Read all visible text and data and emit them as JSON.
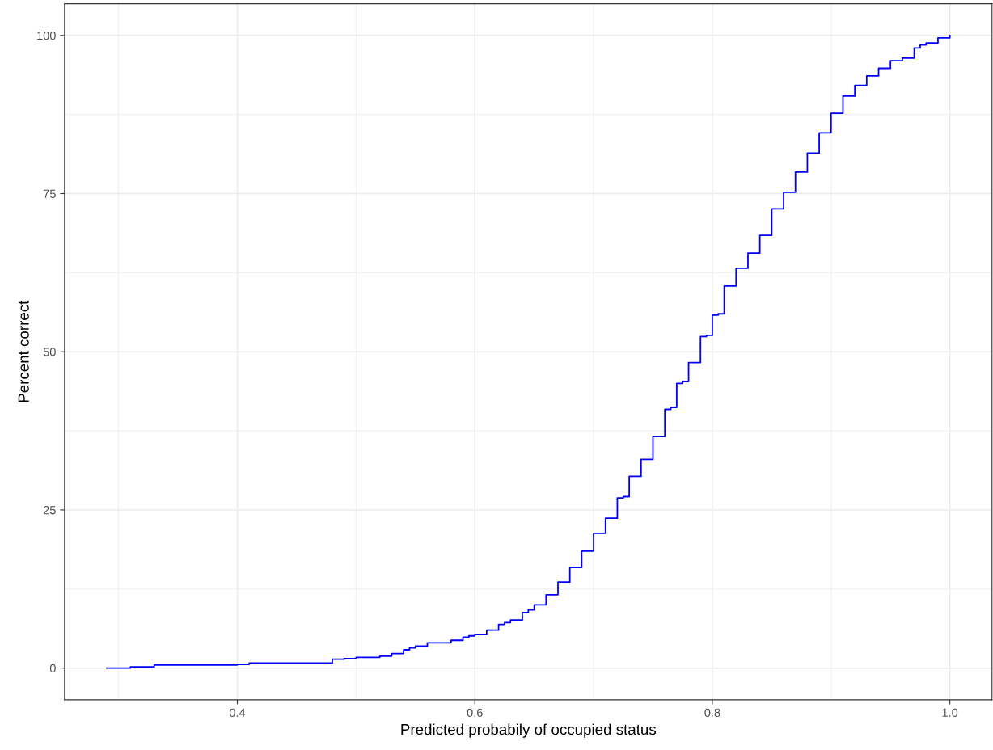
{
  "chart_data": {
    "type": "step",
    "xlabel": "Predicted probabily of occupied status",
    "ylabel": "Percent correct",
    "x": [
      0.29,
      0.31,
      0.33,
      0.4,
      0.41,
      0.48,
      0.49,
      0.5,
      0.52,
      0.53,
      0.54,
      0.545,
      0.55,
      0.56,
      0.58,
      0.59,
      0.595,
      0.6,
      0.61,
      0.62,
      0.625,
      0.63,
      0.64,
      0.645,
      0.65,
      0.66,
      0.67,
      0.68,
      0.69,
      0.7,
      0.71,
      0.72,
      0.725,
      0.73,
      0.74,
      0.75,
      0.76,
      0.765,
      0.77,
      0.775,
      0.78,
      0.79,
      0.795,
      0.8,
      0.805,
      0.81,
      0.82,
      0.83,
      0.84,
      0.85,
      0.86,
      0.87,
      0.88,
      0.89,
      0.9,
      0.91,
      0.92,
      0.93,
      0.94,
      0.95,
      0.96,
      0.97,
      0.975,
      0.98,
      0.99,
      1.0
    ],
    "series": [
      {
        "color": "#0000ff",
        "values": [
          0,
          0.2,
          0.5,
          0.6,
          0.8,
          1.4,
          1.5,
          1.7,
          1.9,
          2.3,
          2.9,
          3.2,
          3.5,
          4.0,
          4.4,
          4.9,
          5.1,
          5.3,
          6.0,
          6.9,
          7.2,
          7.6,
          8.8,
          9.2,
          10.0,
          11.6,
          13.6,
          15.9,
          18.5,
          21.3,
          23.7,
          26.9,
          27.1,
          30.3,
          33.0,
          36.6,
          40.9,
          41.2,
          45.0,
          45.3,
          48.3,
          52.4,
          52.6,
          55.8,
          56.0,
          60.4,
          63.2,
          65.6,
          68.4,
          72.6,
          75.2,
          78.4,
          81.4,
          84.6,
          87.7,
          90.4,
          92.1,
          93.6,
          94.8,
          96.0,
          96.4,
          98.0,
          98.5,
          98.8,
          99.6,
          100
        ]
      }
    ],
    "xlim": [
      0.2545,
      1.0355
    ],
    "ylim": [
      -5,
      105
    ],
    "xticks": [
      {
        "value": 0.3,
        "label": null
      },
      0.4,
      {
        "value": 0.5,
        "label": null
      },
      0.6,
      {
        "value": 0.7,
        "label": null
      },
      0.8,
      {
        "value": 0.9,
        "label": null
      },
      {
        "value": 1.0,
        "label": "1.0"
      }
    ],
    "yticks": [
      0,
      {
        "value": 12.5,
        "label": null
      },
      25,
      {
        "value": 37.5,
        "label": null
      },
      50,
      {
        "value": 62.5,
        "label": null
      },
      75,
      {
        "value": 87.5,
        "label": null
      },
      100
    ],
    "grid": true,
    "line_style": "solid",
    "marker": "none"
  }
}
